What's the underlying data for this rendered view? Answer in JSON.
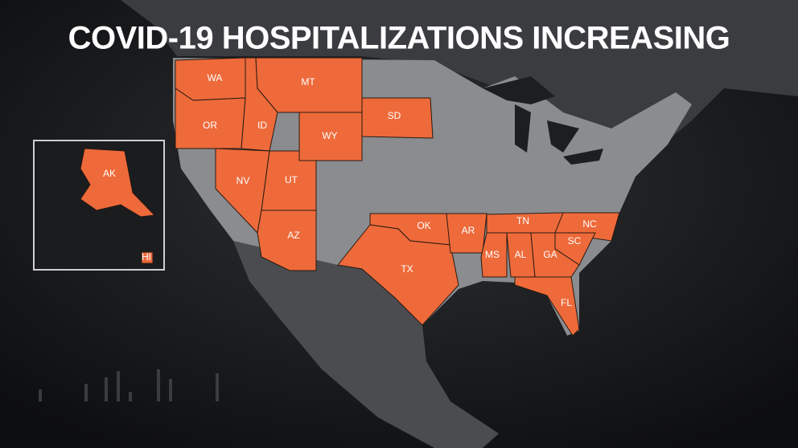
{
  "title": "COVID-19 HOSPITALIZATIONS INCREASING",
  "states": [
    {
      "label": "WA"
    },
    {
      "label": "OR"
    },
    {
      "label": "ID"
    },
    {
      "label": "MT"
    },
    {
      "label": "WY"
    },
    {
      "label": "SD"
    },
    {
      "label": "NV"
    },
    {
      "label": "UT"
    },
    {
      "label": "AZ"
    },
    {
      "label": "OK"
    },
    {
      "label": "TX"
    },
    {
      "label": "AR"
    },
    {
      "label": "TN"
    },
    {
      "label": "NC"
    },
    {
      "label": "SC"
    },
    {
      "label": "MS"
    },
    {
      "label": "AL"
    },
    {
      "label": "GA"
    },
    {
      "label": "FL"
    },
    {
      "label": "AK"
    },
    {
      "label": "HI"
    }
  ]
}
